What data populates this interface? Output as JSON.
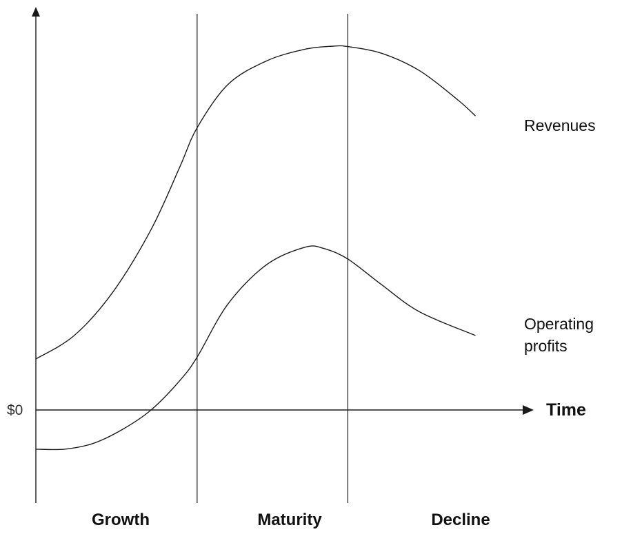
{
  "chart_data": {
    "type": "line",
    "title": "",
    "xlabel": "Time",
    "ylabel": "",
    "y_tick_labels": [
      "$0"
    ],
    "x_range": [
      0,
      100
    ],
    "y_range": [
      -14,
      100
    ],
    "zero_value": 0,
    "grid": false,
    "legend": "none",
    "phase_boundaries": [
      33.6,
      65.0
    ],
    "phases": [
      {
        "name": "Growth",
        "start": 0,
        "end": 33.6
      },
      {
        "name": "Maturity",
        "start": 33.6,
        "end": 65.0
      },
      {
        "name": "Decline",
        "start": 65.0,
        "end": 100
      }
    ],
    "series": [
      {
        "name": "Revenues",
        "label_lines": [
          "Revenues"
        ],
        "x": [
          0,
          8,
          16,
          24,
          30,
          33.6,
          40,
          48,
          56,
          62,
          65,
          72,
          80,
          88,
          91.6
        ],
        "values": [
          13,
          19,
          30,
          46,
          62,
          72,
          83,
          89,
          92,
          92.8,
          92.7,
          91,
          86.5,
          79,
          75
        ]
      },
      {
        "name": "Operating profits",
        "label_lines": [
          "Operating",
          "profits"
        ],
        "x": [
          0,
          6,
          12,
          18,
          24,
          30,
          33.6,
          40,
          48,
          56,
          60,
          65,
          72,
          80,
          91.6
        ],
        "values": [
          -10,
          -10,
          -8.5,
          -5,
          0,
          7.5,
          13.5,
          27,
          37,
          41.5,
          41.2,
          38.5,
          32,
          25,
          19
        ]
      }
    ]
  },
  "colors": {
    "line": "#1a1a1a",
    "text": "#111111",
    "background": "#ffffff"
  }
}
